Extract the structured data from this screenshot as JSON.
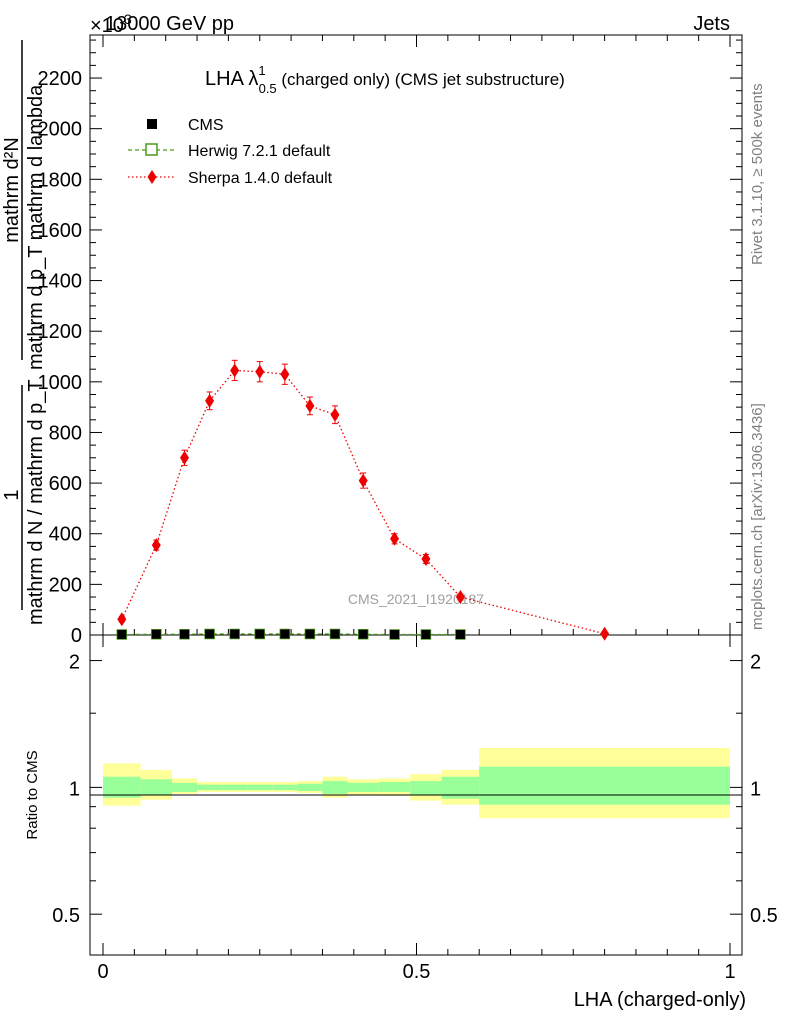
{
  "header": {
    "energy": "13000 GeV pp",
    "process": "Jets",
    "exponent": "×10",
    "exponent_power": "3"
  },
  "side_labels": {
    "rivet": "Rivet 3.1.10, ≥ 500k events",
    "mcplots": "mcplots.cern.ch [arXiv:1306.3436]"
  },
  "watermark": "CMS_2021_I1920187",
  "chart_data": [
    {
      "type": "line",
      "title": "LHA λ",
      "title_sup": "1",
      "title_sub": "0.5",
      "title_suffix": " (charged only) (CMS jet substructure)",
      "ylabel_num": "1",
      "ylabel_den": "mathrm d N / mathrm d p_T",
      "ylabel_sub": "T",
      "ylabel_right_num": "mathrm d²N",
      "ylabel_right_den": "mathrm d p_T mathrm d lambda",
      "xlim": [
        0,
        1
      ],
      "ylim": [
        0,
        2370
      ],
      "yticks": [
        0,
        200,
        400,
        600,
        800,
        1000,
        1200,
        1400,
        1600,
        1800,
        2000,
        2200
      ],
      "ytick_labels": [
        "0",
        "200",
        "400",
        "600",
        "800",
        "1000",
        "1200",
        "1400",
        "1600",
        "1800",
        "2000",
        "2200"
      ],
      "legend_position": "top-left",
      "series": [
        {
          "name": "CMS",
          "color": "#000000",
          "marker": "filled-square",
          "x": [
            0.03,
            0.085,
            0.13,
            0.17,
            0.21,
            0.25,
            0.29,
            0.33,
            0.37,
            0.415,
            0.465,
            0.515,
            0.57
          ],
          "y": [
            2,
            3,
            3,
            4,
            4,
            4,
            4,
            4,
            4,
            3,
            2,
            2,
            2
          ]
        },
        {
          "name": "Herwig 7.2.1 default",
          "color": "#4a9a1a",
          "marker": "open-square",
          "line": "dashed",
          "x": [
            0.03,
            0.085,
            0.13,
            0.17,
            0.21,
            0.25,
            0.29,
            0.33,
            0.37,
            0.415,
            0.465,
            0.515,
            0.57
          ],
          "y": [
            2,
            3,
            3,
            4,
            4,
            4,
            4,
            4,
            4,
            3,
            2,
            2,
            2
          ]
        },
        {
          "name": "Sherpa 1.4.0 default",
          "color": "#ee0000",
          "marker": "diamond",
          "line": "dotted",
          "x": [
            0.03,
            0.085,
            0.13,
            0.17,
            0.21,
            0.25,
            0.29,
            0.33,
            0.37,
            0.415,
            0.465,
            0.515,
            0.57,
            0.8
          ],
          "y": [
            62,
            355,
            700,
            925,
            1045,
            1040,
            1030,
            905,
            870,
            610,
            380,
            300,
            150,
            5
          ],
          "err": [
            10,
            20,
            30,
            35,
            40,
            40,
            40,
            35,
            35,
            30,
            20,
            18,
            12,
            2
          ]
        }
      ]
    },
    {
      "type": "area",
      "ylabel": "Ratio to CMS",
      "xlabel": "LHA (charged-only)",
      "xlim": [
        0,
        1
      ],
      "ylim": [
        0.4,
        2.3
      ],
      "log_y": true,
      "yticks": [
        0.5,
        1,
        2
      ],
      "ytick_labels": [
        "0.5",
        "1",
        "2"
      ],
      "xticks": [
        0,
        0.5,
        1
      ],
      "xtick_labels": [
        "0",
        "0.5",
        "1"
      ],
      "reference": 1,
      "bins": [
        {
          "lo": 0.0,
          "hi": 0.06,
          "inner": [
            0.945,
            1.06
          ],
          "outer": [
            0.905,
            1.14
          ]
        },
        {
          "lo": 0.06,
          "hi": 0.11,
          "inner": [
            0.96,
            1.045
          ],
          "outer": [
            0.935,
            1.1
          ]
        },
        {
          "lo": 0.11,
          "hi": 0.15,
          "inner": [
            0.975,
            1.025
          ],
          "outer": [
            0.965,
            1.05
          ]
        },
        {
          "lo": 0.15,
          "hi": 0.19,
          "inner": [
            0.985,
            1.015
          ],
          "outer": [
            0.975,
            1.03
          ]
        },
        {
          "lo": 0.19,
          "hi": 0.23,
          "inner": [
            0.985,
            1.015
          ],
          "outer": [
            0.975,
            1.03
          ]
        },
        {
          "lo": 0.23,
          "hi": 0.27,
          "inner": [
            0.985,
            1.015
          ],
          "outer": [
            0.975,
            1.03
          ]
        },
        {
          "lo": 0.27,
          "hi": 0.31,
          "inner": [
            0.985,
            1.015
          ],
          "outer": [
            0.975,
            1.03
          ]
        },
        {
          "lo": 0.31,
          "hi": 0.35,
          "inner": [
            0.98,
            1.02
          ],
          "outer": [
            0.97,
            1.035
          ]
        },
        {
          "lo": 0.35,
          "hi": 0.39,
          "inner": [
            0.965,
            1.035
          ],
          "outer": [
            0.945,
            1.06
          ]
        },
        {
          "lo": 0.39,
          "hi": 0.44,
          "inner": [
            0.975,
            1.025
          ],
          "outer": [
            0.96,
            1.045
          ]
        },
        {
          "lo": 0.44,
          "hi": 0.49,
          "inner": [
            0.975,
            1.03
          ],
          "outer": [
            0.955,
            1.05
          ]
        },
        {
          "lo": 0.49,
          "hi": 0.54,
          "inner": [
            0.96,
            1.035
          ],
          "outer": [
            0.93,
            1.075
          ]
        },
        {
          "lo": 0.54,
          "hi": 0.6,
          "inner": [
            0.94,
            1.06
          ],
          "outer": [
            0.91,
            1.1
          ]
        },
        {
          "lo": 0.6,
          "hi": 1.0,
          "inner": [
            0.91,
            1.12
          ],
          "outer": [
            0.845,
            1.24
          ]
        }
      ],
      "inner_color": "#99ff99",
      "outer_color": "#ffff99"
    }
  ]
}
